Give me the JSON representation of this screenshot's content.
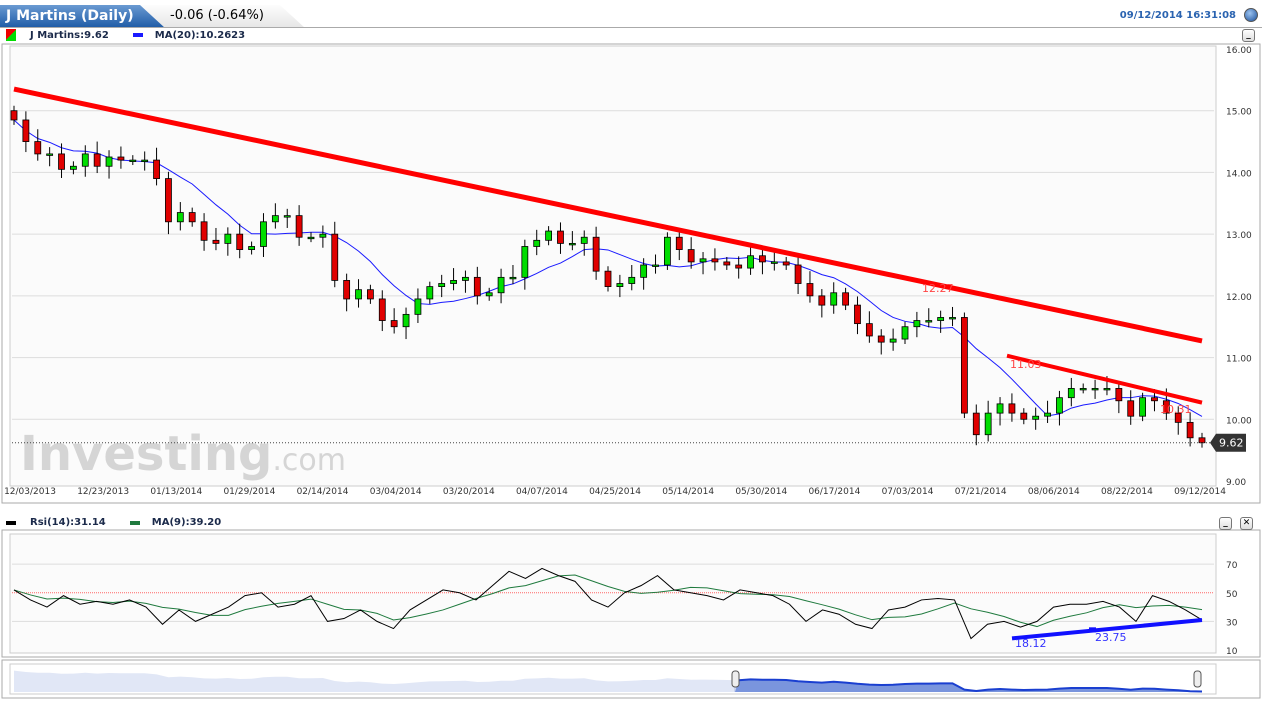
{
  "header": {
    "title": "J Martins (Daily)",
    "change": "-0.06 (-0.64%)",
    "timestamp": "09/12/2014 16:31:08"
  },
  "legend": {
    "price_label": "J Martins:9.62",
    "ma_label": "MA(20):10.2623",
    "rsi_label": "Rsi(14):31.14",
    "rsi_ma_label": "MA(9):39.20"
  },
  "colors": {
    "up": "#00dd00",
    "down": "#e00000",
    "ma": "#1a1aff",
    "rsi": "#000000",
    "rsi_ma": "#1f7a3e",
    "trend": "#ff0000",
    "rsi_trend": "#1010ff",
    "accent": "#1d5aa5"
  },
  "watermark": "Investing.com",
  "chart_data": [
    {
      "type": "candlestick",
      "title": "J Martins (Daily)",
      "ylim": [
        9,
        16
      ],
      "yticks": [
        "16.00",
        "15.00",
        "14.00",
        "13.00",
        "12.00",
        "11.00",
        "10.00",
        "9.00"
      ],
      "xticks": [
        "12/03/2013",
        "12/23/2013",
        "01/13/2014",
        "01/29/2014",
        "02/14/2014",
        "03/04/2014",
        "03/20/2014",
        "04/07/2014",
        "04/25/2014",
        "05/14/2014",
        "05/30/2014",
        "06/17/2014",
        "07/03/2014",
        "07/21/2014",
        "08/06/2014",
        "08/22/2014",
        "09/12/2014"
      ],
      "first_open": 15.0,
      "close": [
        14.85,
        14.5,
        14.3,
        14.3,
        14.05,
        14.1,
        14.3,
        14.1,
        14.25,
        14.2,
        14.2,
        14.2,
        13.9,
        13.2,
        13.35,
        13.2,
        12.9,
        12.85,
        13.0,
        12.75,
        12.8,
        13.2,
        13.3,
        13.3,
        12.95,
        12.95,
        13.0,
        12.25,
        11.95,
        12.1,
        11.95,
        11.6,
        11.5,
        11.7,
        11.95,
        12.15,
        12.2,
        12.25,
        12.3,
        12.0,
        12.05,
        12.3,
        12.3,
        12.8,
        12.9,
        13.05,
        12.85,
        12.85,
        12.95,
        12.4,
        12.15,
        12.2,
        12.3,
        12.5,
        12.5,
        12.95,
        12.75,
        12.55,
        12.6,
        12.55,
        12.5,
        12.45,
        12.65,
        12.55,
        12.55,
        12.5,
        12.2,
        12.0,
        11.85,
        12.05,
        11.85,
        11.55,
        11.35,
        11.25,
        11.3,
        11.5,
        11.6,
        11.6,
        11.65,
        11.65,
        10.1,
        9.75,
        10.1,
        10.25,
        10.1,
        10.0,
        10.05,
        10.1,
        10.35,
        10.5,
        10.5,
        10.5,
        10.5,
        10.3,
        10.05,
        10.35,
        10.3,
        10.1,
        9.95,
        9.7,
        9.62
      ],
      "last_price": "9.62",
      "trendlines": [
        {
          "from": [
            "12/03/2013",
            15.35
          ],
          "to": [
            "09/12/2014",
            11.27
          ]
        },
        {
          "from": [
            "07/31/2014",
            11.03
          ],
          "to": [
            "09/12/2014",
            10.27
          ]
        }
      ],
      "annotations": [
        "12.27",
        "11.03",
        "10.31"
      ]
    },
    {
      "type": "line",
      "title": "Rsi(14)",
      "ylim": [
        10,
        80
      ],
      "yticks": [
        "70",
        "50",
        "30",
        "10"
      ],
      "reference_line": 50,
      "rsi": [
        52,
        45,
        40,
        48,
        42,
        44,
        42,
        45,
        40,
        28,
        38,
        30,
        35,
        40,
        48,
        50,
        40,
        42,
        48,
        30,
        32,
        38,
        30,
        25,
        38,
        45,
        52,
        50,
        45,
        55,
        65,
        60,
        67,
        62,
        58,
        45,
        40,
        50,
        55,
        62,
        52,
        50,
        48,
        45,
        52,
        50,
        48,
        42,
        30,
        38,
        35,
        28,
        25,
        38,
        40,
        45,
        46,
        45,
        18,
        28,
        30,
        26,
        30,
        40,
        42,
        42,
        44,
        40,
        30,
        48,
        44,
        38,
        31
      ],
      "trendline": {
        "from": 18.12,
        "to": 31.0
      },
      "annotations": [
        "18.12",
        "23.75"
      ]
    }
  ]
}
